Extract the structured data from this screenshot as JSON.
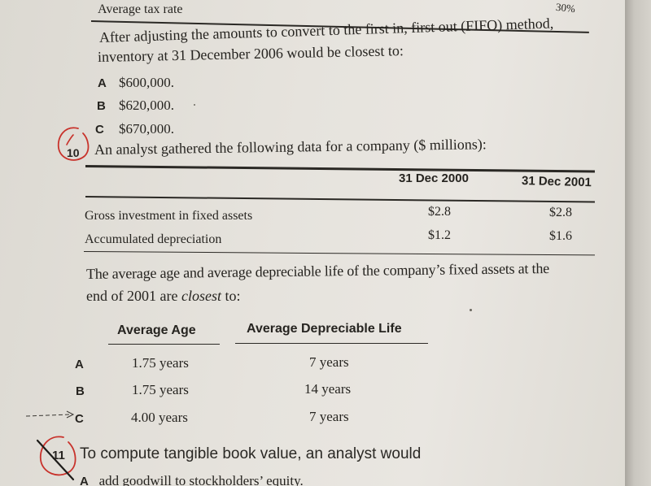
{
  "top": {
    "label": "Average tax rate",
    "value": "30%"
  },
  "q9": {
    "stem_line1": "After adjusting the amounts to convert to the first in, first out (FIFO) method,",
    "stem_line2": "inventory at 31 December 2006 would be closest to:",
    "options": [
      {
        "letter": "A",
        "text": "$600,000."
      },
      {
        "letter": "B",
        "text": "$620,000."
      },
      {
        "letter": "C",
        "text": "$670,000."
      }
    ]
  },
  "q10": {
    "number": "10",
    "stem": "An analyst gathered the following data for a company ($ millions):",
    "table": {
      "headers": [
        "31 Dec 2000",
        "31 Dec 2001"
      ],
      "rows": [
        {
          "label": "Gross investment in fixed assets",
          "values": [
            "$2.8",
            "$2.8"
          ]
        },
        {
          "label": "Accumulated depreciation",
          "values": [
            "$1.2",
            "$1.6"
          ]
        }
      ]
    },
    "question_line1": "The average age and average depreciable life of the company’s fixed assets at the",
    "question_line2_pre": "end of 2001 are ",
    "question_line2_em": "closest",
    "question_line2_post": " to:",
    "answer_headers": [
      "Average Age",
      "Average Depreciable Life"
    ],
    "answers": [
      {
        "letter": "A",
        "age": "1.75 years",
        "life": "7 years"
      },
      {
        "letter": "B",
        "age": "1.75 years",
        "life": "14 years"
      },
      {
        "letter": "C",
        "age": "4.00 years",
        "life": "7 years"
      }
    ]
  },
  "q11": {
    "number": "11",
    "stem": "To compute tangible book value, an analyst would",
    "option_letter": "A",
    "option_text": "add goodwill to stockholders’ equity."
  },
  "colors": {
    "ink": "#262420",
    "pen_red": "#c8322b",
    "paper": "#e6e3dd"
  }
}
